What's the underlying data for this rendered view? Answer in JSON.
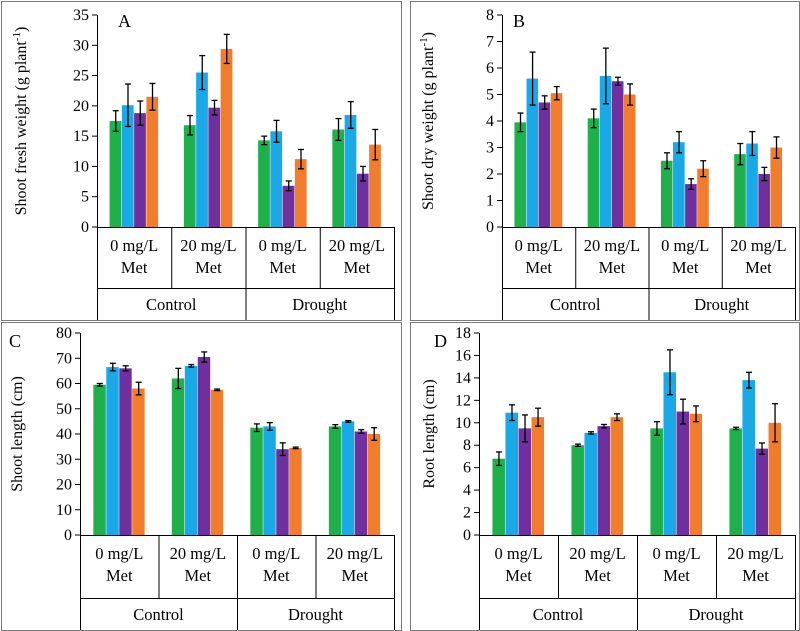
{
  "figure": {
    "series_colors": [
      "#1fb04b",
      "#18a9e6",
      "#6f2f9f",
      "#f07c2c"
    ]
  },
  "chart_data": [
    {
      "type": "bar",
      "panel": "A",
      "ylabel_main": "Shoot fresh weight (g plant",
      "ylabel_sup": "-1",
      "ylabel_tail": ")",
      "ylim": [
        0,
        35
      ],
      "yticks": [
        0,
        5,
        10,
        15,
        20,
        25,
        30,
        35
      ],
      "categories": [
        {
          "line1": "0 mg/L",
          "line2": "Met"
        },
        {
          "line1": "20 mg/L",
          "line2": "Met"
        },
        {
          "line1": "0 mg/L",
          "line2": "Met"
        },
        {
          "line1": "20 mg/L",
          "line2": "Met"
        }
      ],
      "groups": [
        "Control",
        "Drought"
      ],
      "series": [
        {
          "values": [
            17.5,
            16.8,
            14.3,
            16.1
          ],
          "errors": [
            1.7,
            1.6,
            0.7,
            1.8
          ]
        },
        {
          "values": [
            20.1,
            25.5,
            15.8,
            18.5
          ],
          "errors": [
            3.5,
            2.8,
            1.8,
            2.2
          ]
        },
        {
          "values": [
            18.8,
            19.7,
            6.8,
            8.8
          ],
          "errors": [
            2.0,
            1.2,
            0.8,
            1.2
          ]
        },
        {
          "values": [
            21.5,
            29.4,
            11.2,
            13.6
          ],
          "errors": [
            2.2,
            2.4,
            1.6,
            2.5
          ]
        }
      ]
    },
    {
      "type": "bar",
      "panel": "B",
      "ylabel_main": "Shoot dry weight (g plant",
      "ylabel_sup": "-1",
      "ylabel_tail": ")",
      "ylim": [
        0,
        8
      ],
      "yticks": [
        0,
        1,
        2,
        3,
        4,
        5,
        6,
        7,
        8
      ],
      "categories": [
        {
          "line1": "0 mg/L",
          "line2": "Met"
        },
        {
          "line1": "20 mg/L",
          "line2": "Met"
        },
        {
          "line1": "0 mg/L",
          "line2": "Met"
        },
        {
          "line1": "20 mg/L",
          "line2": "Met"
        }
      ],
      "groups": [
        "Control",
        "Drought"
      ],
      "series": [
        {
          "values": [
            3.95,
            4.1,
            2.5,
            2.75
          ],
          "errors": [
            0.35,
            0.35,
            0.3,
            0.4
          ]
        },
        {
          "values": [
            5.6,
            5.7,
            3.2,
            3.15
          ],
          "errors": [
            1.0,
            1.05,
            0.4,
            0.45
          ]
        },
        {
          "values": [
            4.7,
            5.5,
            1.62,
            2.0
          ],
          "errors": [
            0.25,
            0.15,
            0.2,
            0.25
          ]
        },
        {
          "values": [
            5.05,
            5.0,
            2.2,
            3.0
          ],
          "errors": [
            0.25,
            0.4,
            0.3,
            0.4
          ]
        }
      ]
    },
    {
      "type": "bar",
      "panel": "C",
      "ylabel_main": "Shoot length (cm)",
      "ylabel_sup": "",
      "ylabel_tail": "",
      "ylim": [
        0,
        80
      ],
      "yticks": [
        0,
        10,
        20,
        30,
        40,
        50,
        60,
        70,
        80
      ],
      "categories": [
        {
          "line1": "0 mg/L",
          "line2": "Met"
        },
        {
          "line1": "20 mg/L",
          "line2": "Met"
        },
        {
          "line1": "0 mg/L",
          "line2": "Met"
        },
        {
          "line1": "20 mg/L",
          "line2": "Met"
        }
      ],
      "groups": [
        "Control",
        "Drought"
      ],
      "series": [
        {
          "values": [
            59.5,
            62.0,
            42.5,
            43.0
          ],
          "errors": [
            0.5,
            4.0,
            1.5,
            0.7
          ]
        },
        {
          "values": [
            66.5,
            67.0,
            43.0,
            45.0
          ],
          "errors": [
            1.5,
            0.5,
            1.5,
            0.3
          ]
        },
        {
          "values": [
            66.0,
            70.5,
            34.0,
            41.0
          ],
          "errors": [
            1.0,
            2.0,
            2.5,
            0.7
          ]
        },
        {
          "values": [
            58.0,
            57.5,
            34.5,
            40.0
          ],
          "errors": [
            2.5,
            0.3,
            0.3,
            2.5
          ]
        }
      ]
    },
    {
      "type": "bar",
      "panel": "D",
      "ylabel_main": "Root length (cm)",
      "ylabel_sup": "",
      "ylabel_tail": "",
      "ylim": [
        0,
        18
      ],
      "yticks": [
        0,
        2,
        4,
        6,
        8,
        10,
        12,
        14,
        16,
        18
      ],
      "categories": [
        {
          "line1": "0 mg/L",
          "line2": "Met"
        },
        {
          "line1": "20 mg/L",
          "line2": "Met"
        },
        {
          "line1": "0 mg/L",
          "line2": "Met"
        },
        {
          "line1": "20 mg/L",
          "line2": "Met"
        }
      ],
      "groups": [
        "Control",
        "Drought"
      ],
      "series": [
        {
          "values": [
            6.8,
            8.0,
            9.5,
            9.5
          ],
          "errors": [
            0.6,
            0.1,
            0.6,
            0.1
          ]
        },
        {
          "values": [
            10.9,
            9.1,
            14.5,
            13.8
          ],
          "errors": [
            0.7,
            0.1,
            2.0,
            0.7
          ]
        },
        {
          "values": [
            9.5,
            9.7,
            11.0,
            7.7
          ],
          "errors": [
            1.2,
            0.15,
            1.1,
            0.5
          ]
        },
        {
          "values": [
            10.5,
            10.5,
            10.8,
            10.0
          ],
          "errors": [
            0.8,
            0.3,
            0.7,
            1.7
          ]
        }
      ]
    }
  ]
}
